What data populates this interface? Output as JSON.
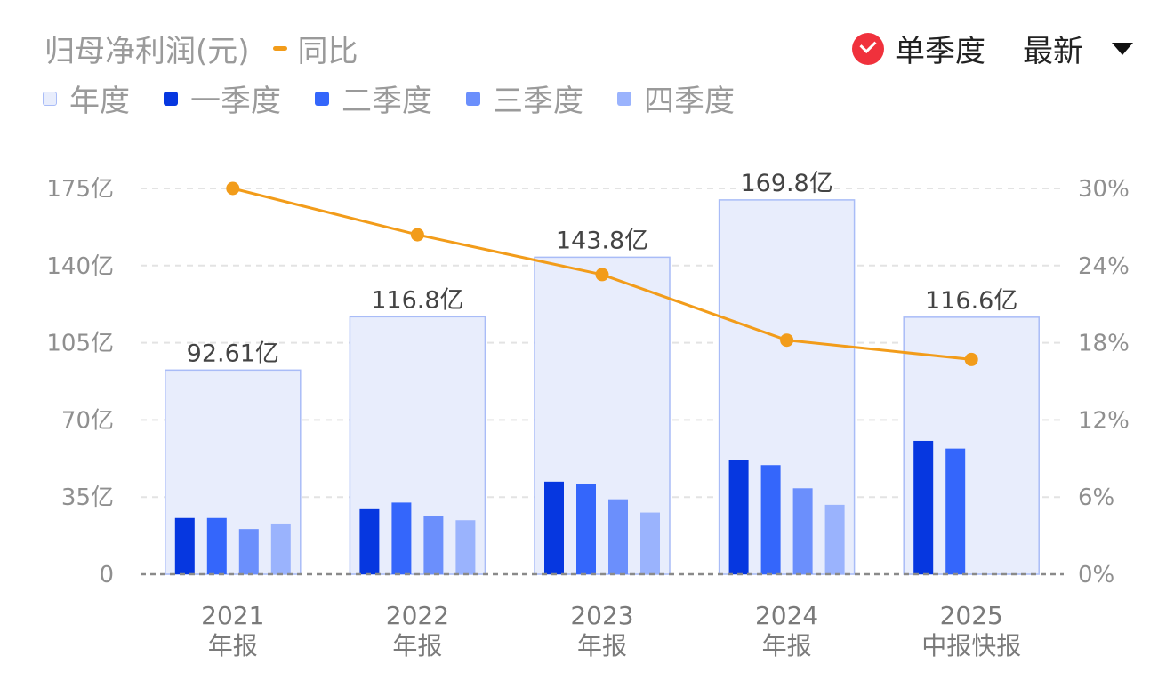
{
  "header": {
    "title": "归母净利润(元)",
    "yoy_label": "同比",
    "toggle_label": "单季度",
    "selector_label": "最新"
  },
  "legend": [
    {
      "label": "年度",
      "color": "#e8edfc"
    },
    {
      "label": "一季度",
      "color": "#0637e0"
    },
    {
      "label": "二季度",
      "color": "#3466fb"
    },
    {
      "label": "三季度",
      "color": "#6b8ffc"
    },
    {
      "label": "四季度",
      "color": "#9ab3fd"
    }
  ],
  "colors": {
    "annual_fill": "#e8edfc",
    "annual_stroke": "#a9bcf7",
    "yoy_line": "#f29c1a",
    "check": "#f0313c"
  },
  "chart_data": {
    "type": "bar",
    "categories": [
      {
        "year": "2021",
        "period": "年报"
      },
      {
        "year": "2022",
        "period": "年报"
      },
      {
        "year": "2023",
        "period": "年报"
      },
      {
        "year": "2024",
        "period": "年报"
      },
      {
        "year": "2025",
        "period": "中报快报"
      }
    ],
    "annual": [
      92.61,
      116.8,
      143.8,
      169.8,
      116.6
    ],
    "annual_labels": [
      "92.61亿",
      "116.8亿",
      "143.8亿",
      "169.8亿",
      "116.6亿"
    ],
    "quarters": [
      {
        "name": "一季度",
        "values": [
          25.5,
          29.5,
          42,
          52,
          60.5
        ]
      },
      {
        "name": "二季度",
        "values": [
          25.5,
          32.5,
          41,
          49.5,
          57
        ]
      },
      {
        "name": "三季度",
        "values": [
          20.5,
          26.5,
          34,
          39,
          null
        ]
      },
      {
        "name": "四季度",
        "values": [
          23,
          24.5,
          28,
          31.5,
          null
        ]
      }
    ],
    "yoy_pct": [
      30.0,
      26.4,
      23.3,
      18.2,
      16.7
    ],
    "y_left": {
      "min": 0,
      "max": 175,
      "ticks": [
        0,
        35,
        70,
        105,
        140,
        175
      ],
      "tick_labels": [
        "0",
        "35亿",
        "70亿",
        "105亿",
        "140亿",
        "175亿"
      ]
    },
    "y_right": {
      "min": 0,
      "max": 30,
      "ticks": [
        0,
        6,
        12,
        18,
        24,
        30
      ],
      "tick_labels": [
        "0%",
        "6%",
        "12%",
        "18%",
        "24%",
        "30%"
      ]
    }
  }
}
